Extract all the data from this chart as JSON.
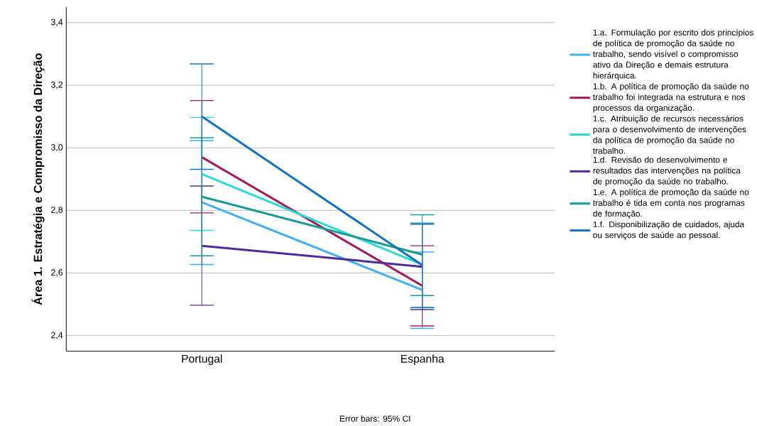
{
  "chart_data": {
    "type": "line",
    "ylabel": "Área 1. Estratégia e Compromisso da Direção",
    "categories": [
      "Portugal",
      "Espanha"
    ],
    "series": [
      {
        "name": "1.a. Formulação por escrito dos princípios de política de promoção da saúde no trabalho, sendo visível o compromisso ativo da Direção e demais estrutura hierárquica.",
        "color": "#3fb0f5",
        "values": [
          2.826,
          2.546
        ],
        "errors": [
          [
            2.627,
            3.023
          ],
          [
            2.423,
            2.667
          ]
        ]
      },
      {
        "name": "1.b. A política de promoção da saúde no trabalho foi integrada na estrutura e nos processos da organização.",
        "color": "#a4195a",
        "values": [
          2.97,
          2.559
        ],
        "errors": [
          [
            2.792,
            3.151
          ],
          [
            2.431,
            2.687
          ]
        ]
      },
      {
        "name": "1.c. Atribuição de recursos necessários para o desenvolvimento de intervenções da política de promoção da saúde no trabalho.",
        "color": "#2fd8d8",
        "values": [
          2.916,
          2.627
        ],
        "errors": [
          [
            2.736,
            3.097
          ],
          [
            2.49,
            2.76
          ]
        ]
      },
      {
        "name": "1.d. Revisão do desenvolvimento e resultados das intervenções na política de promoção da saúde no trabalho.",
        "color": "#4f2a9c",
        "values": [
          2.687,
          2.62
        ],
        "errors": [
          [
            2.497,
            2.878
          ],
          [
            2.483,
            2.757
          ]
        ]
      },
      {
        "name": "1.e. A política de promoção da saúde no trabalho é tida em conta nos programas de formação.",
        "color": "#169b96",
        "values": [
          2.844,
          2.659
        ],
        "errors": [
          [
            2.655,
            3.032
          ],
          [
            2.528,
            2.786
          ]
        ]
      },
      {
        "name": "1.f. Disponibilização de cuidados, ajuda ou serviços de saúde ao pessoal.",
        "color": "#1570c0",
        "values": [
          3.1,
          2.625
        ],
        "errors": [
          [
            2.931,
            3.268
          ],
          [
            2.49,
            2.756
          ]
        ]
      }
    ],
    "ylim": [
      2.35,
      3.45
    ],
    "yticks": [
      {
        "value": 2.4,
        "label": "2,4"
      },
      {
        "value": 2.6,
        "label": "2,6"
      },
      {
        "value": 2.8,
        "label": "2,8"
      },
      {
        "value": 3.0,
        "label": "3,0"
      },
      {
        "value": 3.2,
        "label": "3,2"
      },
      {
        "value": 3.4,
        "label": "3,4"
      }
    ],
    "grid": "y",
    "legend": "right",
    "marker": "none",
    "line_style": "solid",
    "annotations": [
      "Error bars: 95% CI"
    ]
  }
}
